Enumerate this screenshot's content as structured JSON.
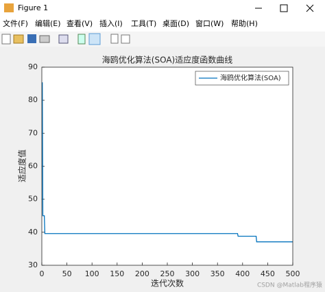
{
  "window": {
    "title": "Figure 1",
    "menu": [
      "文件(F)",
      "编辑(E)",
      "查看(V)",
      "插入(I)",
      "工具(T)",
      "桌面(D)",
      "窗口(W)",
      "帮助(H)"
    ],
    "watermark": "CSDN @Matlab程序猿"
  },
  "chart_data": {
    "type": "line",
    "title": "海鸥优化算法(SOA)适应度函数曲线",
    "x_label": "迭代次数",
    "y_label": "适应度值",
    "x": [
      1,
      2,
      5,
      6,
      390,
      391,
      427,
      428,
      500
    ],
    "series": [
      {
        "name": "海鸥优化算法(SOA)",
        "color": "#0072bd",
        "values": [
          85.4,
          45,
          45,
          39.6,
          39.6,
          38.8,
          38.8,
          37.1,
          37.1
        ]
      }
    ],
    "xlim": [
      0,
      500
    ],
    "xticks": [
      0,
      50,
      100,
      150,
      200,
      250,
      300,
      350,
      400,
      450,
      500
    ],
    "ylim": [
      30,
      90
    ],
    "yticks": [
      30,
      40,
      50,
      60,
      70,
      80,
      90
    ],
    "legend": "upper right",
    "grid": false
  }
}
